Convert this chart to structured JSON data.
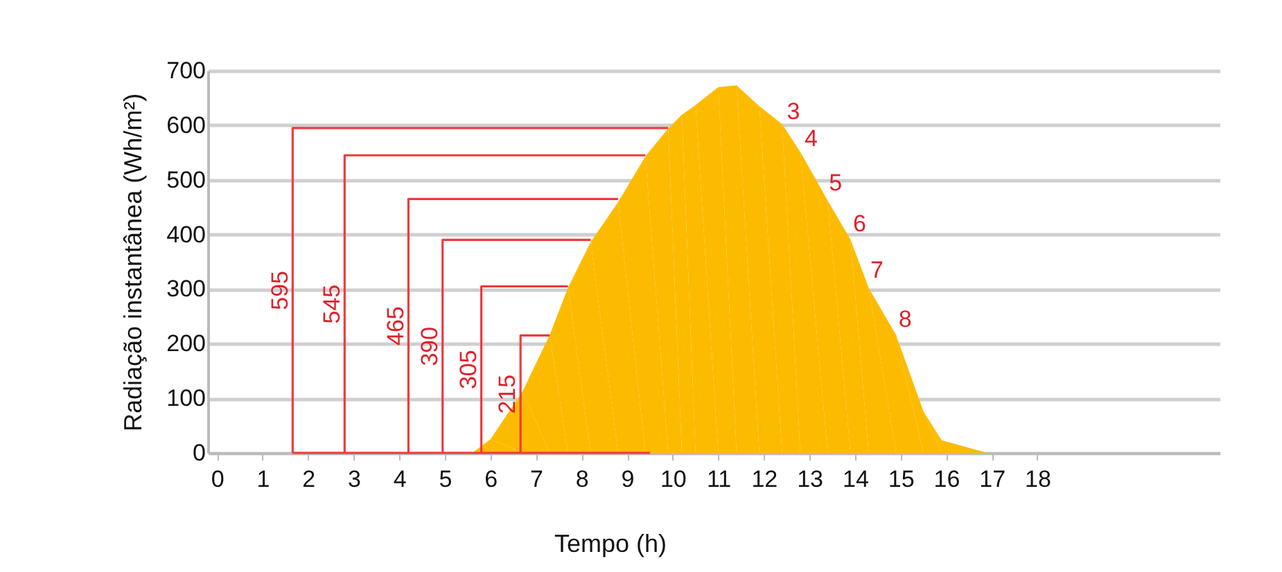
{
  "chart_data": {
    "type": "area",
    "xlabel": "Tempo (h)",
    "ylabel": "Radiação instantânea (Wh/m²)",
    "xlim": [
      -0.2,
      22
    ],
    "ylim": [
      0,
      700
    ],
    "xticks": [
      0,
      1,
      2,
      3,
      4,
      5,
      6,
      7,
      8,
      9,
      10,
      11,
      12,
      13,
      14,
      15,
      16,
      17,
      18
    ],
    "yticks": [
      0,
      100,
      200,
      300,
      400,
      500,
      600,
      700
    ],
    "grid": "y",
    "series": [
      {
        "color": "#fdbb00",
        "x": [
          5.6,
          6.0,
          6.7,
          7.3,
          7.7,
          8.2,
          8.8,
          9.4,
          9.9,
          10.2,
          10.5,
          11.0,
          11.4,
          11.9,
          12.4,
          12.8,
          13.4,
          13.9,
          14.3,
          14.9,
          15.5,
          15.9,
          16.9
        ],
        "values": [
          0,
          25,
          112,
          216,
          302,
          386,
          459,
          543,
          594,
          619,
          637,
          670,
          673,
          635,
          602,
          551,
          462,
          391,
          302,
          216,
          76,
          23,
          0
        ]
      },
      {
        "type": "line",
        "color": "#f03a3a",
        "x": [
          1.66,
          1.66,
          9.9
        ],
        "values": [
          0,
          595,
          595
        ]
      },
      {
        "type": "line",
        "color": "#f03a3a",
        "x": [
          2.8,
          2.8,
          9.4
        ],
        "values": [
          0,
          545,
          545
        ]
      },
      {
        "type": "line",
        "color": "#f03a3a",
        "x": [
          4.2,
          4.2,
          8.8
        ],
        "values": [
          0,
          465,
          465
        ]
      },
      {
        "type": "line",
        "color": "#f03a3a",
        "x": [
          4.95,
          4.95,
          8.2
        ],
        "values": [
          0,
          390,
          390
        ]
      },
      {
        "type": "line",
        "color": "#f03a3a",
        "x": [
          5.8,
          5.8,
          7.7
        ],
        "values": [
          0,
          305,
          305
        ]
      },
      {
        "type": "line",
        "color": "#f03a3a",
        "x": [
          6.66,
          6.66,
          7.3
        ],
        "values": [
          0,
          215,
          215
        ]
      },
      {
        "type": "line",
        "color": "#f03a3a",
        "x": [
          1.66,
          9.5
        ],
        "values": [
          0,
          0
        ]
      }
    ],
    "annotations": [
      "595",
      "545",
      "465",
      "390",
      "305",
      "215",
      "3",
      "4",
      "5",
      "6",
      "7",
      "8"
    ]
  }
}
